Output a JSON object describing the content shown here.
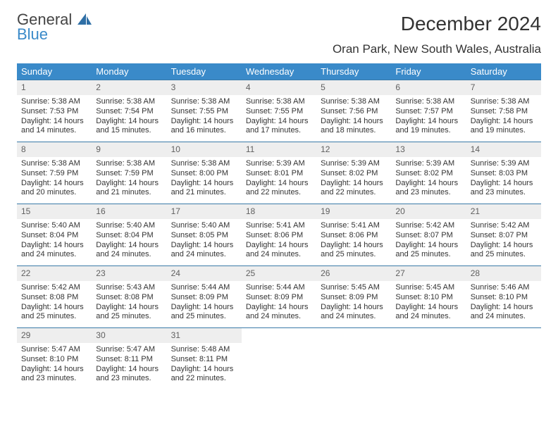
{
  "logo": {
    "line1": "General",
    "line2": "Blue"
  },
  "title": "December 2024",
  "location": "Oran Park, New South Wales, Australia",
  "colors": {
    "header_bg": "#3a8ac9",
    "header_fg": "#ffffff",
    "daynum_bg": "#eeeeee",
    "rule": "#3a7aa8",
    "text": "#333333",
    "logo_gray": "#444444",
    "logo_blue": "#3a8ac9"
  },
  "fonts": {
    "title_pt": 28,
    "location_pt": 17,
    "dayhead_pt": 13,
    "daynum_pt": 12,
    "body_pt": 11
  },
  "day_headers": [
    "Sunday",
    "Monday",
    "Tuesday",
    "Wednesday",
    "Thursday",
    "Friday",
    "Saturday"
  ],
  "weeks": [
    [
      {
        "n": "1",
        "sr": "5:38 AM",
        "ss": "7:53 PM",
        "dl": "14 hours and 14 minutes."
      },
      {
        "n": "2",
        "sr": "5:38 AM",
        "ss": "7:54 PM",
        "dl": "14 hours and 15 minutes."
      },
      {
        "n": "3",
        "sr": "5:38 AM",
        "ss": "7:55 PM",
        "dl": "14 hours and 16 minutes."
      },
      {
        "n": "4",
        "sr": "5:38 AM",
        "ss": "7:55 PM",
        "dl": "14 hours and 17 minutes."
      },
      {
        "n": "5",
        "sr": "5:38 AM",
        "ss": "7:56 PM",
        "dl": "14 hours and 18 minutes."
      },
      {
        "n": "6",
        "sr": "5:38 AM",
        "ss": "7:57 PM",
        "dl": "14 hours and 19 minutes."
      },
      {
        "n": "7",
        "sr": "5:38 AM",
        "ss": "7:58 PM",
        "dl": "14 hours and 19 minutes."
      }
    ],
    [
      {
        "n": "8",
        "sr": "5:38 AM",
        "ss": "7:59 PM",
        "dl": "14 hours and 20 minutes."
      },
      {
        "n": "9",
        "sr": "5:38 AM",
        "ss": "7:59 PM",
        "dl": "14 hours and 21 minutes."
      },
      {
        "n": "10",
        "sr": "5:38 AM",
        "ss": "8:00 PM",
        "dl": "14 hours and 21 minutes."
      },
      {
        "n": "11",
        "sr": "5:39 AM",
        "ss": "8:01 PM",
        "dl": "14 hours and 22 minutes."
      },
      {
        "n": "12",
        "sr": "5:39 AM",
        "ss": "8:02 PM",
        "dl": "14 hours and 22 minutes."
      },
      {
        "n": "13",
        "sr": "5:39 AM",
        "ss": "8:02 PM",
        "dl": "14 hours and 23 minutes."
      },
      {
        "n": "14",
        "sr": "5:39 AM",
        "ss": "8:03 PM",
        "dl": "14 hours and 23 minutes."
      }
    ],
    [
      {
        "n": "15",
        "sr": "5:40 AM",
        "ss": "8:04 PM",
        "dl": "14 hours and 24 minutes."
      },
      {
        "n": "16",
        "sr": "5:40 AM",
        "ss": "8:04 PM",
        "dl": "14 hours and 24 minutes."
      },
      {
        "n": "17",
        "sr": "5:40 AM",
        "ss": "8:05 PM",
        "dl": "14 hours and 24 minutes."
      },
      {
        "n": "18",
        "sr": "5:41 AM",
        "ss": "8:06 PM",
        "dl": "14 hours and 24 minutes."
      },
      {
        "n": "19",
        "sr": "5:41 AM",
        "ss": "8:06 PM",
        "dl": "14 hours and 25 minutes."
      },
      {
        "n": "20",
        "sr": "5:42 AM",
        "ss": "8:07 PM",
        "dl": "14 hours and 25 minutes."
      },
      {
        "n": "21",
        "sr": "5:42 AM",
        "ss": "8:07 PM",
        "dl": "14 hours and 25 minutes."
      }
    ],
    [
      {
        "n": "22",
        "sr": "5:42 AM",
        "ss": "8:08 PM",
        "dl": "14 hours and 25 minutes."
      },
      {
        "n": "23",
        "sr": "5:43 AM",
        "ss": "8:08 PM",
        "dl": "14 hours and 25 minutes."
      },
      {
        "n": "24",
        "sr": "5:44 AM",
        "ss": "8:09 PM",
        "dl": "14 hours and 25 minutes."
      },
      {
        "n": "25",
        "sr": "5:44 AM",
        "ss": "8:09 PM",
        "dl": "14 hours and 24 minutes."
      },
      {
        "n": "26",
        "sr": "5:45 AM",
        "ss": "8:09 PM",
        "dl": "14 hours and 24 minutes."
      },
      {
        "n": "27",
        "sr": "5:45 AM",
        "ss": "8:10 PM",
        "dl": "14 hours and 24 minutes."
      },
      {
        "n": "28",
        "sr": "5:46 AM",
        "ss": "8:10 PM",
        "dl": "14 hours and 24 minutes."
      }
    ],
    [
      {
        "n": "29",
        "sr": "5:47 AM",
        "ss": "8:10 PM",
        "dl": "14 hours and 23 minutes."
      },
      {
        "n": "30",
        "sr": "5:47 AM",
        "ss": "8:11 PM",
        "dl": "14 hours and 23 minutes."
      },
      {
        "n": "31",
        "sr": "5:48 AM",
        "ss": "8:11 PM",
        "dl": "14 hours and 22 minutes."
      },
      null,
      null,
      null,
      null
    ]
  ],
  "labels": {
    "sunrise": "Sunrise:",
    "sunset": "Sunset:",
    "daylight": "Daylight:"
  }
}
